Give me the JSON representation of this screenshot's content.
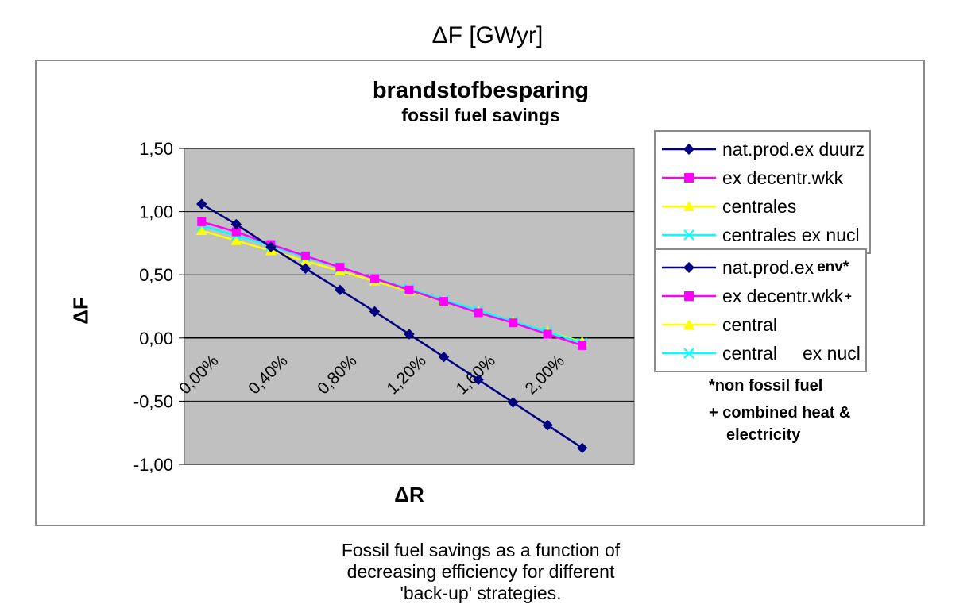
{
  "page": {
    "top_title": "ΔF [GWyr]",
    "caption": "Fossil fuel savings as a function of\ndecreasing efficiency for different\n'back-up' strategies."
  },
  "chart_data": {
    "type": "line",
    "title": "brandstofbesparing",
    "subtitle": "fossil fuel savings",
    "xlabel": "ΔR",
    "ylabel": "ΔF",
    "xlim": [
      0.0,
      2.6
    ],
    "ylim": [
      -1.0,
      1.5
    ],
    "grid": true,
    "plot_background": "#c0c0c0",
    "y_ticks": [
      1.5,
      1.0,
      0.5,
      0.0,
      -0.5,
      -1.0
    ],
    "y_tick_labels": [
      "1,50",
      "1,00",
      "0,50",
      "0,00",
      "-0,50",
      "-1,00"
    ],
    "x_ticks": [
      0.0,
      0.4,
      0.8,
      1.2,
      1.6,
      2.0
    ],
    "x_tick_labels": [
      "0,00%",
      "0,40%",
      "0,80%",
      "1,20%",
      "1,60%",
      "2,00%"
    ],
    "x": [
      0.1,
      0.3,
      0.5,
      0.7,
      0.9,
      1.1,
      1.3,
      1.5,
      1.7,
      1.9,
      2.1,
      2.3,
      2.5
    ],
    "series": [
      {
        "name": "nat.prod.ex duurz",
        "color": "#000080",
        "marker": "diamond",
        "values": [
          1.06,
          0.9,
          0.72,
          0.55,
          0.38,
          0.21,
          0.03,
          -0.15,
          -0.33,
          -0.51,
          -0.69,
          -0.87,
          null
        ]
      },
      {
        "name": "ex decentr.wkk",
        "color": "#ff00ff",
        "marker": "square",
        "values": [
          0.92,
          0.84,
          0.74,
          0.65,
          0.56,
          0.47,
          0.38,
          0.29,
          0.2,
          0.12,
          0.03,
          -0.06,
          null
        ]
      },
      {
        "name": "centrales",
        "color": "#ffff00",
        "marker": "triangle",
        "values": [
          0.85,
          0.77,
          0.69,
          0.61,
          0.53,
          0.45,
          0.37,
          0.29,
          0.21,
          0.13,
          0.05,
          -0.03,
          null
        ]
      },
      {
        "name": "centrales ex nucl",
        "color": "#00ffff",
        "marker": "x",
        "values": [
          0.89,
          0.81,
          0.73,
          0.64,
          0.56,
          0.47,
          0.39,
          0.3,
          0.22,
          0.13,
          0.05,
          -0.04,
          null
        ]
      }
    ],
    "legend_groups": [
      [
        {
          "label": "nat.prod.ex duurz",
          "color": "#000080",
          "marker": "diamond"
        },
        {
          "label": "ex decentr.wkk",
          "color": "#ff00ff",
          "marker": "square"
        },
        {
          "label": "centrales",
          "color": "#ffff00",
          "marker": "triangle"
        },
        {
          "label": "centrales ex nucl",
          "color": "#00ffff",
          "marker": "x"
        }
      ],
      [
        {
          "label": "nat.prod.ex",
          "suffix": "env*",
          "color": "#000080",
          "marker": "diamond"
        },
        {
          "label": "ex decentr.wkk",
          "sup": "+",
          "color": "#ff00ff",
          "marker": "square"
        },
        {
          "label": "central",
          "color": "#ffff00",
          "marker": "triangle"
        },
        {
          "label": "central     ex nucl",
          "color": "#00ffff",
          "marker": "x"
        }
      ]
    ],
    "notes": [
      "*non fossil fuel",
      "+ combined heat &",
      "electricity"
    ]
  }
}
